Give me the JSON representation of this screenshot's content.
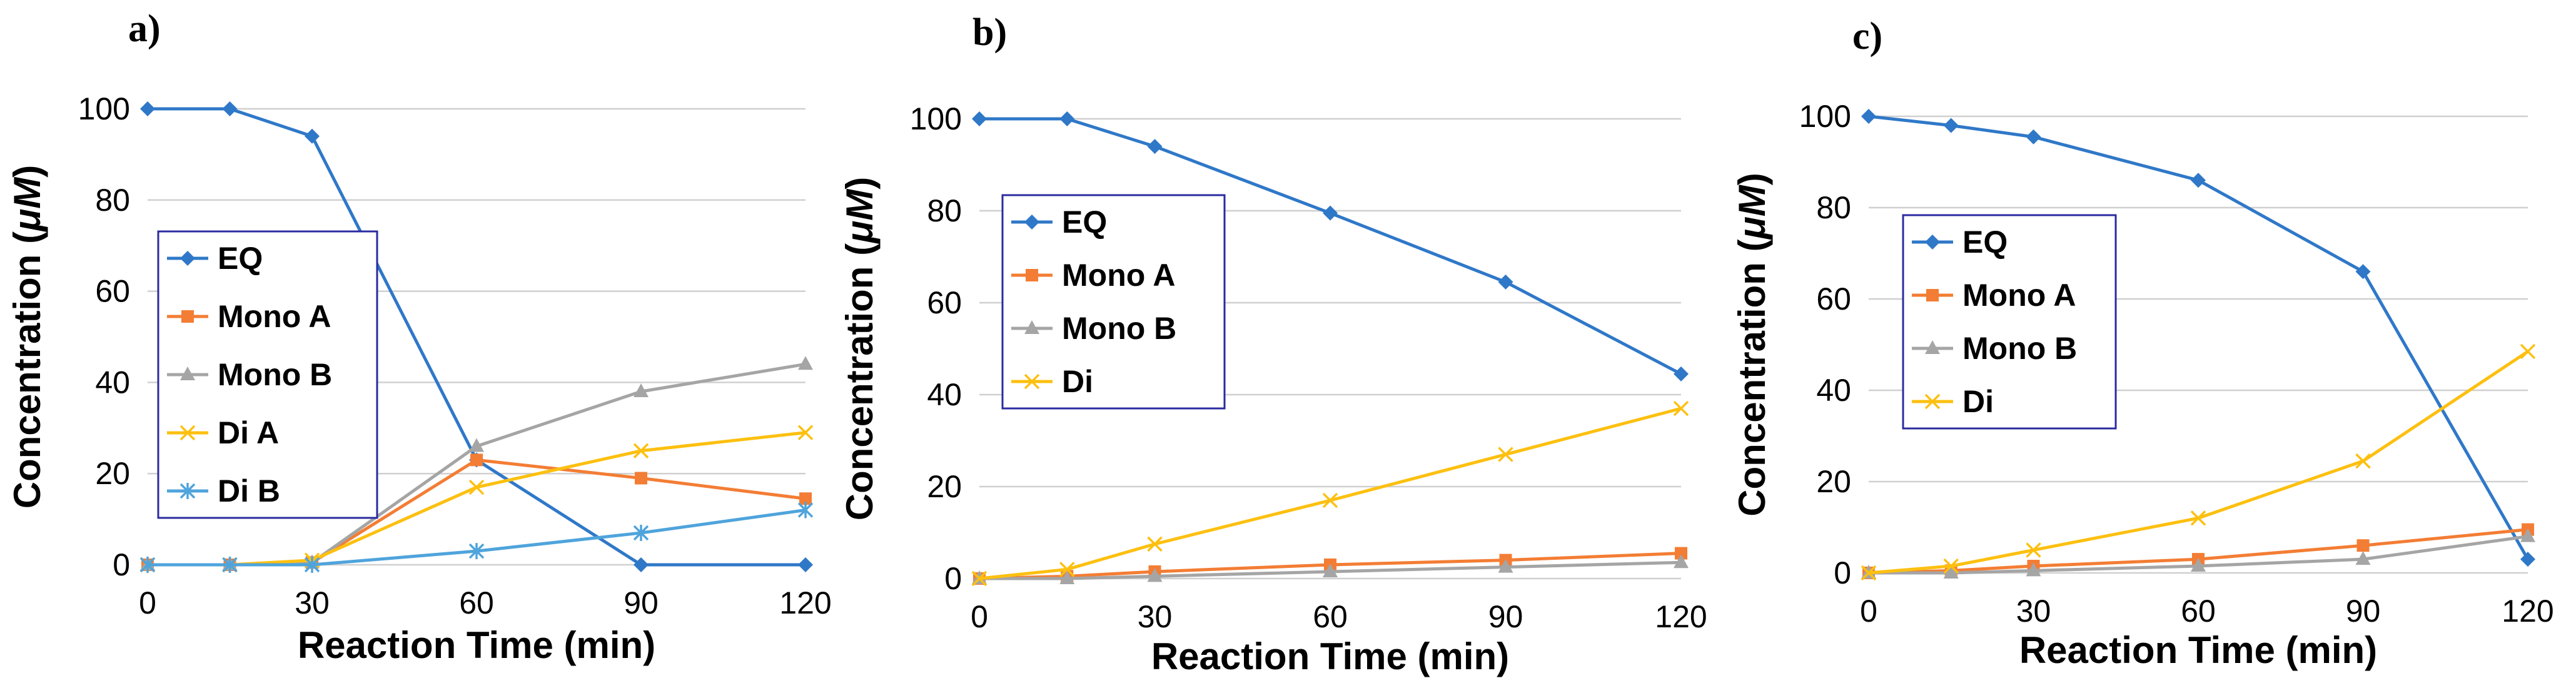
{
  "chart_data": [
    {
      "type": "line",
      "panel_label": "a)",
      "xlabel": "Reaction Time (min)",
      "ylabel_prefix": "Concentration (",
      "ylabel_unit": "μM",
      "ylabel_suffix": ")",
      "x": [
        0,
        15,
        30,
        60,
        90,
        120
      ],
      "xticks": [
        0,
        30,
        60,
        90,
        120
      ],
      "yticks": [
        0,
        20,
        40,
        60,
        80,
        100
      ],
      "xlim": [
        0,
        120
      ],
      "ylim": [
        0,
        100
      ],
      "grid": true,
      "legend_position": "middle-left",
      "series": [
        {
          "name": "EQ",
          "color": "#2F78C8",
          "marker": "diamond",
          "values": [
            100,
            100,
            94,
            23,
            0,
            0
          ]
        },
        {
          "name": "Mono A",
          "color": "#F37D34",
          "marker": "square",
          "values": [
            0,
            0,
            0.5,
            23,
            19,
            14.5
          ]
        },
        {
          "name": "Mono B",
          "color": "#A5A5A5",
          "marker": "triangle",
          "values": [
            0,
            0,
            0.5,
            26,
            38,
            44
          ]
        },
        {
          "name": "Di A",
          "color": "#FDC010",
          "marker": "x",
          "values": [
            0,
            0,
            1,
            17,
            25,
            29
          ]
        },
        {
          "name": "Di B",
          "color": "#4FA4DC",
          "marker": "asterisk",
          "values": [
            0,
            0,
            0,
            3,
            7,
            12
          ]
        }
      ]
    },
    {
      "type": "line",
      "panel_label": "b)",
      "xlabel": "Reaction Time (min)",
      "ylabel_prefix": "Concentration (",
      "ylabel_unit": "μM",
      "ylabel_suffix": ")",
      "x": [
        0,
        15,
        30,
        60,
        90,
        120
      ],
      "xticks": [
        0,
        30,
        60,
        90,
        120
      ],
      "yticks": [
        0,
        20,
        40,
        60,
        80,
        100
      ],
      "xlim": [
        0,
        120
      ],
      "ylim": [
        0,
        100
      ],
      "grid": true,
      "legend_position": "middle-left",
      "series": [
        {
          "name": "EQ",
          "color": "#2F78C8",
          "marker": "diamond",
          "values": [
            100,
            100,
            94,
            79.5,
            64.5,
            44.5
          ]
        },
        {
          "name": "Mono A",
          "color": "#F37D34",
          "marker": "square",
          "values": [
            0,
            0.5,
            1.5,
            3,
            4,
            5.5
          ]
        },
        {
          "name": "Mono B",
          "color": "#A5A5A5",
          "marker": "triangle",
          "values": [
            0,
            0,
            0.5,
            1.5,
            2.5,
            3.5
          ]
        },
        {
          "name": "Di",
          "color": "#FDC010",
          "marker": "x",
          "values": [
            0,
            2,
            7.5,
            17,
            27,
            37
          ]
        }
      ]
    },
    {
      "type": "line",
      "panel_label": "c)",
      "xlabel": "Reaction Time (min)",
      "ylabel_prefix": "Concentration (",
      "ylabel_unit": "μM",
      "ylabel_suffix": ")",
      "x": [
        0,
        15,
        30,
        60,
        90,
        120
      ],
      "xticks": [
        0,
        30,
        60,
        90,
        120
      ],
      "yticks": [
        0,
        20,
        40,
        60,
        80,
        100
      ],
      "xlim": [
        0,
        120
      ],
      "ylim": [
        0,
        100
      ],
      "grid": true,
      "legend_position": "middle-left",
      "series": [
        {
          "name": "EQ",
          "color": "#2F78C8",
          "marker": "diamond",
          "values": [
            100,
            98,
            95.5,
            86,
            66,
            3
          ]
        },
        {
          "name": "Mono A",
          "color": "#F37D34",
          "marker": "square",
          "values": [
            0,
            0.5,
            1.5,
            3,
            6,
            9.5
          ]
        },
        {
          "name": "Mono B",
          "color": "#A5A5A5",
          "marker": "triangle",
          "values": [
            0,
            0,
            0.5,
            1.5,
            3,
            8
          ]
        },
        {
          "name": "Di",
          "color": "#FDC010",
          "marker": "x",
          "values": [
            0,
            1.5,
            5,
            12,
            24.5,
            48.5
          ]
        }
      ]
    }
  ]
}
